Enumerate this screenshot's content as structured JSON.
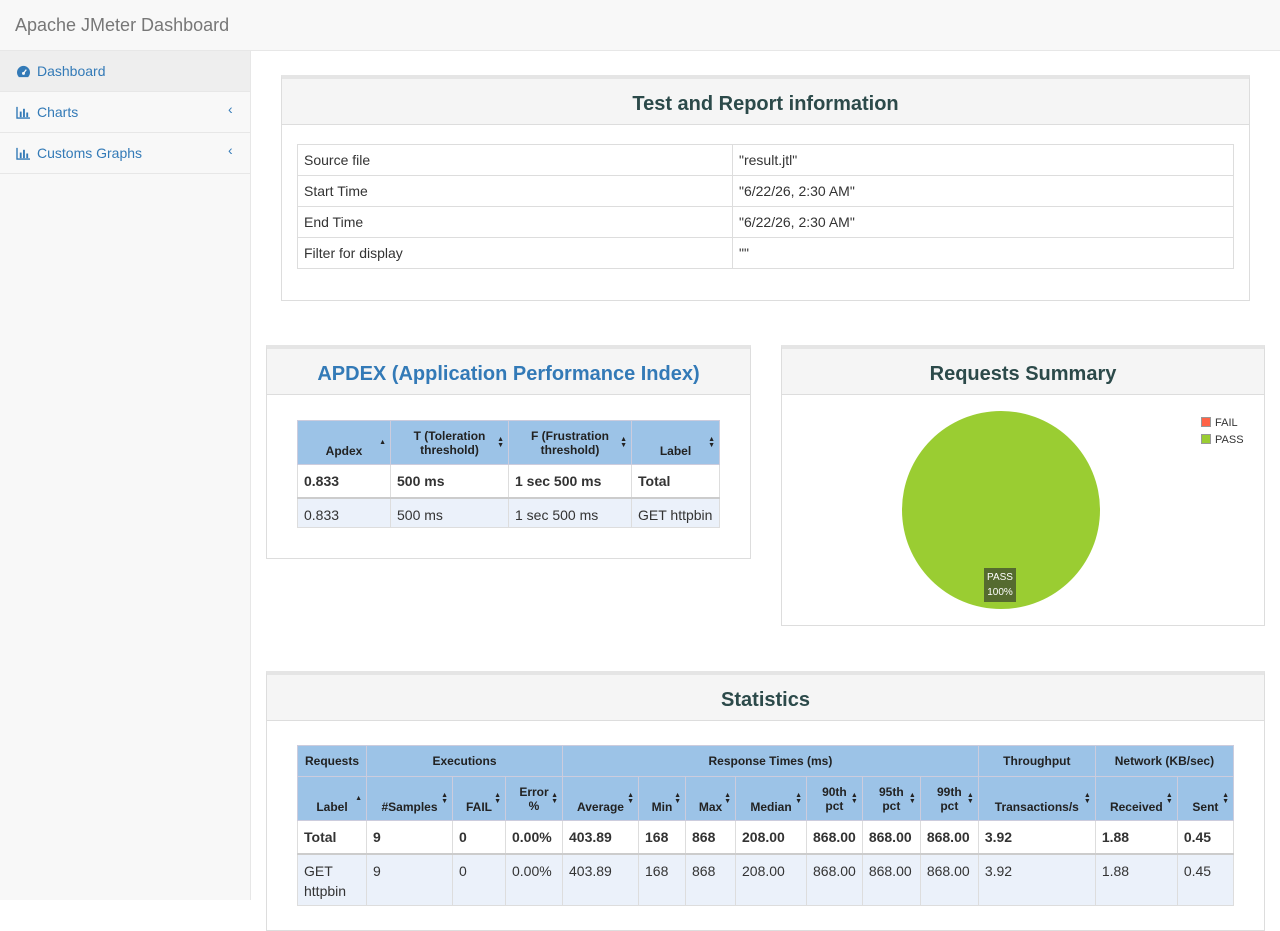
{
  "app": {
    "title": "Apache JMeter Dashboard"
  },
  "sidebar": {
    "items": [
      {
        "label": "Dashboard",
        "icon": "dashboard-icon"
      },
      {
        "label": "Charts",
        "icon": "bar-chart-icon"
      },
      {
        "label": "Customs Graphs",
        "icon": "bar-chart-icon"
      }
    ],
    "chevron": "‹"
  },
  "info": {
    "title": "Test and Report information",
    "rows": [
      {
        "key": "Source file",
        "value": "\"result.jtl\""
      },
      {
        "key": "Start Time",
        "value": "\"6/22/26, 2:30 AM\""
      },
      {
        "key": "End Time",
        "value": "\"6/22/26, 2:30 AM\""
      },
      {
        "key": "Filter for display",
        "value": "\"\""
      }
    ]
  },
  "apdex": {
    "title": "APDEX (Application Performance Index)",
    "headers": [
      "Apdex",
      "T (Toleration threshold)",
      "F (Frustration threshold)",
      "Label"
    ],
    "rows": [
      [
        "0.833",
        "500 ms",
        "1 sec 500 ms",
        "Total"
      ],
      [
        "0.833",
        "500 ms",
        "1 sec 500 ms",
        "GET httpbin"
      ]
    ]
  },
  "summary": {
    "title": "Requests Summary",
    "legend": [
      {
        "label": "FAIL",
        "color": "#ff6347"
      },
      {
        "label": "PASS",
        "color": "#9acd32"
      }
    ],
    "slice_label": "PASS",
    "slice_pct": "100%"
  },
  "chart_data": {
    "type": "pie",
    "categories": [
      "FAIL",
      "PASS"
    ],
    "values": [
      0,
      100
    ],
    "title": "Requests Summary"
  },
  "statistics": {
    "title": "Statistics",
    "groups": [
      "Requests",
      "Executions",
      "Response Times (ms)",
      "Throughput",
      "Network (KB/sec)"
    ],
    "headers": [
      "Label",
      "#Samples",
      "FAIL",
      "Error %",
      "Average",
      "Min",
      "Max",
      "Median",
      "90th pct",
      "95th pct",
      "99th pct",
      "Transactions/s",
      "Received",
      "Sent"
    ],
    "rows": [
      [
        "Total",
        "9",
        "0",
        "0.00%",
        "403.89",
        "168",
        "868",
        "208.00",
        "868.00",
        "868.00",
        "868.00",
        "3.92",
        "1.88",
        "0.45"
      ],
      [
        "GET httpbin",
        "9",
        "0",
        "0.00%",
        "403.89",
        "168",
        "868",
        "208.00",
        "868.00",
        "868.00",
        "868.00",
        "3.92",
        "1.88",
        "0.45"
      ]
    ]
  },
  "colors": {
    "link": "#337ab7",
    "header_bg": "#9cc3e7",
    "pass": "#9acd32",
    "fail": "#ff6347"
  }
}
